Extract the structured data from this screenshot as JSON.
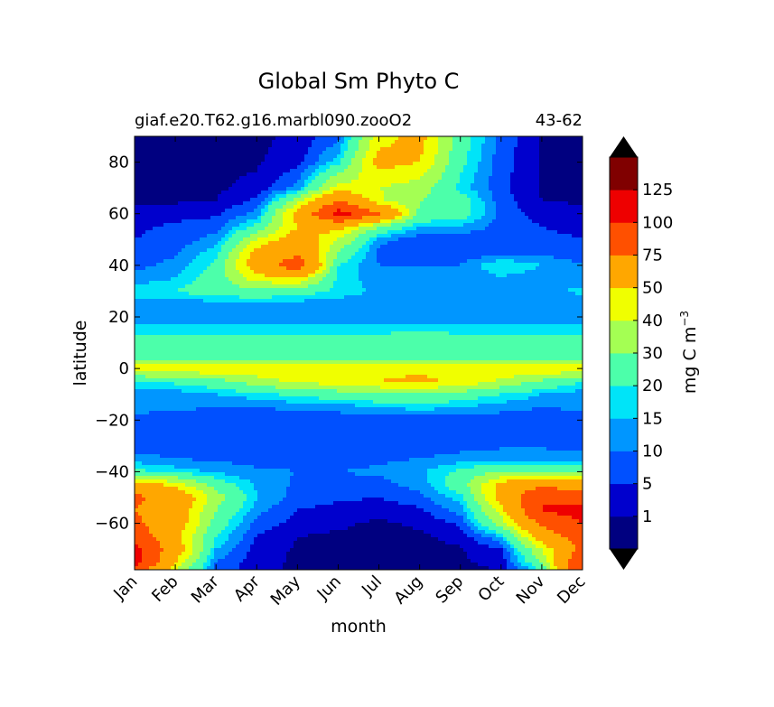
{
  "chart_data": {
    "type": "contourf",
    "title": "Global Sm Phyto C",
    "subtitle_left": "giaf.e20.T62.g16.marbl090.zooO2",
    "subtitle_right": "43-62",
    "xlabel": "month",
    "ylabel": "latitude",
    "x_tick_labels": [
      "Jan",
      "Feb",
      "Mar",
      "Apr",
      "May",
      "Jun",
      "Jul",
      "Aug",
      "Sep",
      "Oct",
      "Nov",
      "Dec"
    ],
    "x_range": [
      1,
      12
    ],
    "y_range": [
      -78,
      90
    ],
    "y_ticks": [
      80,
      60,
      40,
      20,
      0,
      -20,
      -40,
      -60
    ],
    "y_tick_labels": [
      "80",
      "60",
      "40",
      "20",
      "0",
      "−20",
      "−40",
      "−60"
    ],
    "colorbar": {
      "label": "mg C m",
      "label_superscript": "−3",
      "extend": "both",
      "levels": [
        0,
        1,
        5,
        10,
        15,
        20,
        30,
        40,
        50,
        75,
        100,
        125,
        150
      ],
      "tick_labels": [
        "1",
        "5",
        "10",
        "15",
        "20",
        "30",
        "40",
        "50",
        "75",
        "100",
        "125"
      ],
      "colors": [
        "#000080",
        "#0000cd",
        "#0050ff",
        "#0096ff",
        "#00e4f8",
        "#4cffaa",
        "#a4ff53",
        "#f0ff00",
        "#ffa700",
        "#ff5000",
        "#ee0000",
        "#800000"
      ],
      "under_color": "#000000",
      "over_color": "#000000"
    },
    "x_months": [
      1,
      2,
      3,
      4,
      5,
      6,
      7,
      8,
      9,
      10,
      11,
      12
    ],
    "latitudes": [
      90,
      80,
      70,
      65,
      60,
      55,
      50,
      45,
      40,
      35,
      30,
      25,
      20,
      15,
      10,
      5,
      0,
      -5,
      -10,
      -15,
      -20,
      -25,
      -30,
      -35,
      -40,
      -45,
      -50,
      -55,
      -60,
      -65,
      -70,
      -75,
      -78
    ],
    "values": [
      [
        0.5,
        0.5,
        0.5,
        0.5,
        1.5,
        8,
        45,
        55,
        25,
        8,
        0.5,
        0.5
      ],
      [
        0.5,
        0.5,
        0.5,
        0.5,
        3,
        18,
        55,
        50,
        22,
        7,
        0.5,
        0.5
      ],
      [
        0.5,
        0.5,
        0.5,
        2,
        12,
        45,
        40,
        35,
        18,
        6,
        0.5,
        0.5
      ],
      [
        0.5,
        0.5,
        1,
        6,
        35,
        75,
        42,
        30,
        25,
        7,
        1,
        0.5
      ],
      [
        2,
        3,
        4,
        12,
        55,
        110,
        78,
        28,
        25,
        8,
        3,
        2
      ],
      [
        4,
        6,
        8,
        22,
        50,
        55,
        30,
        15,
        14,
        8,
        5,
        4
      ],
      [
        5,
        7,
        12,
        40,
        60,
        40,
        12,
        7,
        6,
        7,
        6,
        5
      ],
      [
        6,
        9,
        18,
        55,
        70,
        30,
        8,
        6,
        6,
        8,
        8,
        7
      ],
      [
        8,
        12,
        22,
        60,
        90,
        20,
        10,
        10,
        10,
        20,
        15,
        10
      ],
      [
        12,
        15,
        25,
        45,
        50,
        18,
        12,
        12,
        12,
        14,
        12,
        12
      ],
      [
        18,
        20,
        25,
        28,
        25,
        18,
        14,
        12,
        10,
        12,
        14,
        16
      ],
      [
        12,
        12,
        12,
        12,
        12,
        12,
        12,
        12,
        12,
        12,
        12,
        12
      ],
      [
        10,
        10,
        10,
        10,
        10,
        10,
        10,
        10,
        10,
        10,
        10,
        10
      ],
      [
        19,
        19,
        19,
        19,
        19,
        19,
        19,
        19,
        19,
        19,
        19,
        19
      ],
      [
        22,
        22,
        22,
        22,
        22,
        22,
        22,
        25,
        22,
        22,
        22,
        22
      ],
      [
        24,
        24,
        24,
        24,
        24,
        24,
        24,
        24,
        24,
        24,
        24,
        24
      ],
      [
        48,
        48,
        48,
        48,
        48,
        48,
        48,
        48,
        48,
        48,
        48,
        48
      ],
      [
        18,
        22,
        26,
        35,
        42,
        45,
        50,
        52,
        48,
        38,
        28,
        20
      ],
      [
        12,
        12,
        15,
        18,
        22,
        25,
        28,
        30,
        25,
        20,
        15,
        12
      ],
      [
        12,
        11,
        10,
        10,
        11,
        12,
        15,
        17,
        15,
        12,
        10,
        11
      ],
      [
        8,
        7,
        7,
        7,
        7,
        7,
        7,
        7,
        7,
        7,
        7,
        7
      ],
      [
        7,
        6,
        6,
        6,
        6,
        6,
        6,
        6,
        6,
        6,
        6,
        7
      ],
      [
        8,
        7,
        7,
        7,
        7,
        7,
        7,
        7,
        8,
        9,
        9,
        8
      ],
      [
        12,
        10,
        9,
        8,
        8,
        8,
        9,
        10,
        12,
        14,
        14,
        13
      ],
      [
        22,
        18,
        14,
        11,
        10,
        10,
        11,
        14,
        22,
        30,
        28,
        25
      ],
      [
        60,
        45,
        25,
        14,
        9,
        8,
        8,
        12,
        25,
        55,
        70,
        60
      ],
      [
        80,
        65,
        35,
        15,
        8,
        6,
        5,
        8,
        18,
        55,
        100,
        90
      ],
      [
        75,
        60,
        30,
        12,
        5,
        3,
        2,
        4,
        12,
        45,
        100,
        110
      ],
      [
        80,
        60,
        25,
        8,
        3,
        1.5,
        0.5,
        1.5,
        6,
        35,
        80,
        100
      ],
      [
        90,
        55,
        20,
        5,
        1,
        0.5,
        0.5,
        0.5,
        2,
        15,
        60,
        90
      ],
      [
        110,
        60,
        15,
        3,
        0.5,
        0.5,
        0.5,
        0.5,
        0.5,
        5,
        40,
        80
      ],
      [
        110,
        50,
        10,
        2,
        0.5,
        0.5,
        0.5,
        0.5,
        0.5,
        2,
        30,
        100
      ],
      [
        90,
        40,
        8,
        2,
        0.5,
        0.5,
        0.5,
        0.5,
        0.5,
        1,
        20,
        100
      ]
    ]
  }
}
